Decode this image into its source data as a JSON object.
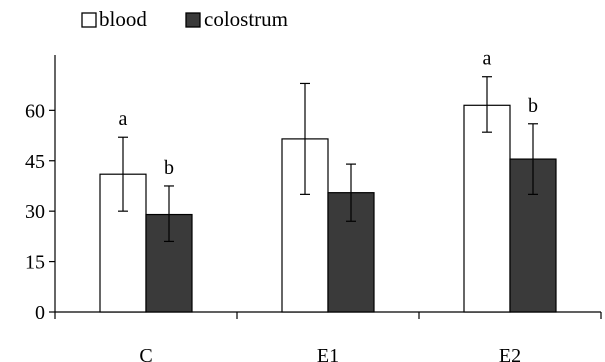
{
  "chart_data": {
    "type": "bar",
    "categories": [
      "C",
      "E1",
      "E2"
    ],
    "series": [
      {
        "name": "blood",
        "color": "#ffffff",
        "values": [
          41,
          51.5,
          61.5
        ],
        "err_low": [
          30,
          35,
          53.5
        ],
        "err_high": [
          52,
          68,
          70
        ],
        "letters": [
          "a",
          "",
          "a"
        ]
      },
      {
        "name": "colostrum",
        "color": "#3a3a3a",
        "values": [
          29,
          35.5,
          45.5
        ],
        "err_low": [
          21,
          27,
          35
        ],
        "err_high": [
          37.5,
          44,
          56
        ],
        "letters": [
          "b",
          "",
          "b"
        ]
      }
    ],
    "yticks": [
      0,
      15,
      30,
      45,
      60
    ],
    "ylim": [
      0,
      72
    ],
    "grid": false,
    "legend": "top-left",
    "title": "",
    "xlabel": "",
    "ylabel": ""
  }
}
